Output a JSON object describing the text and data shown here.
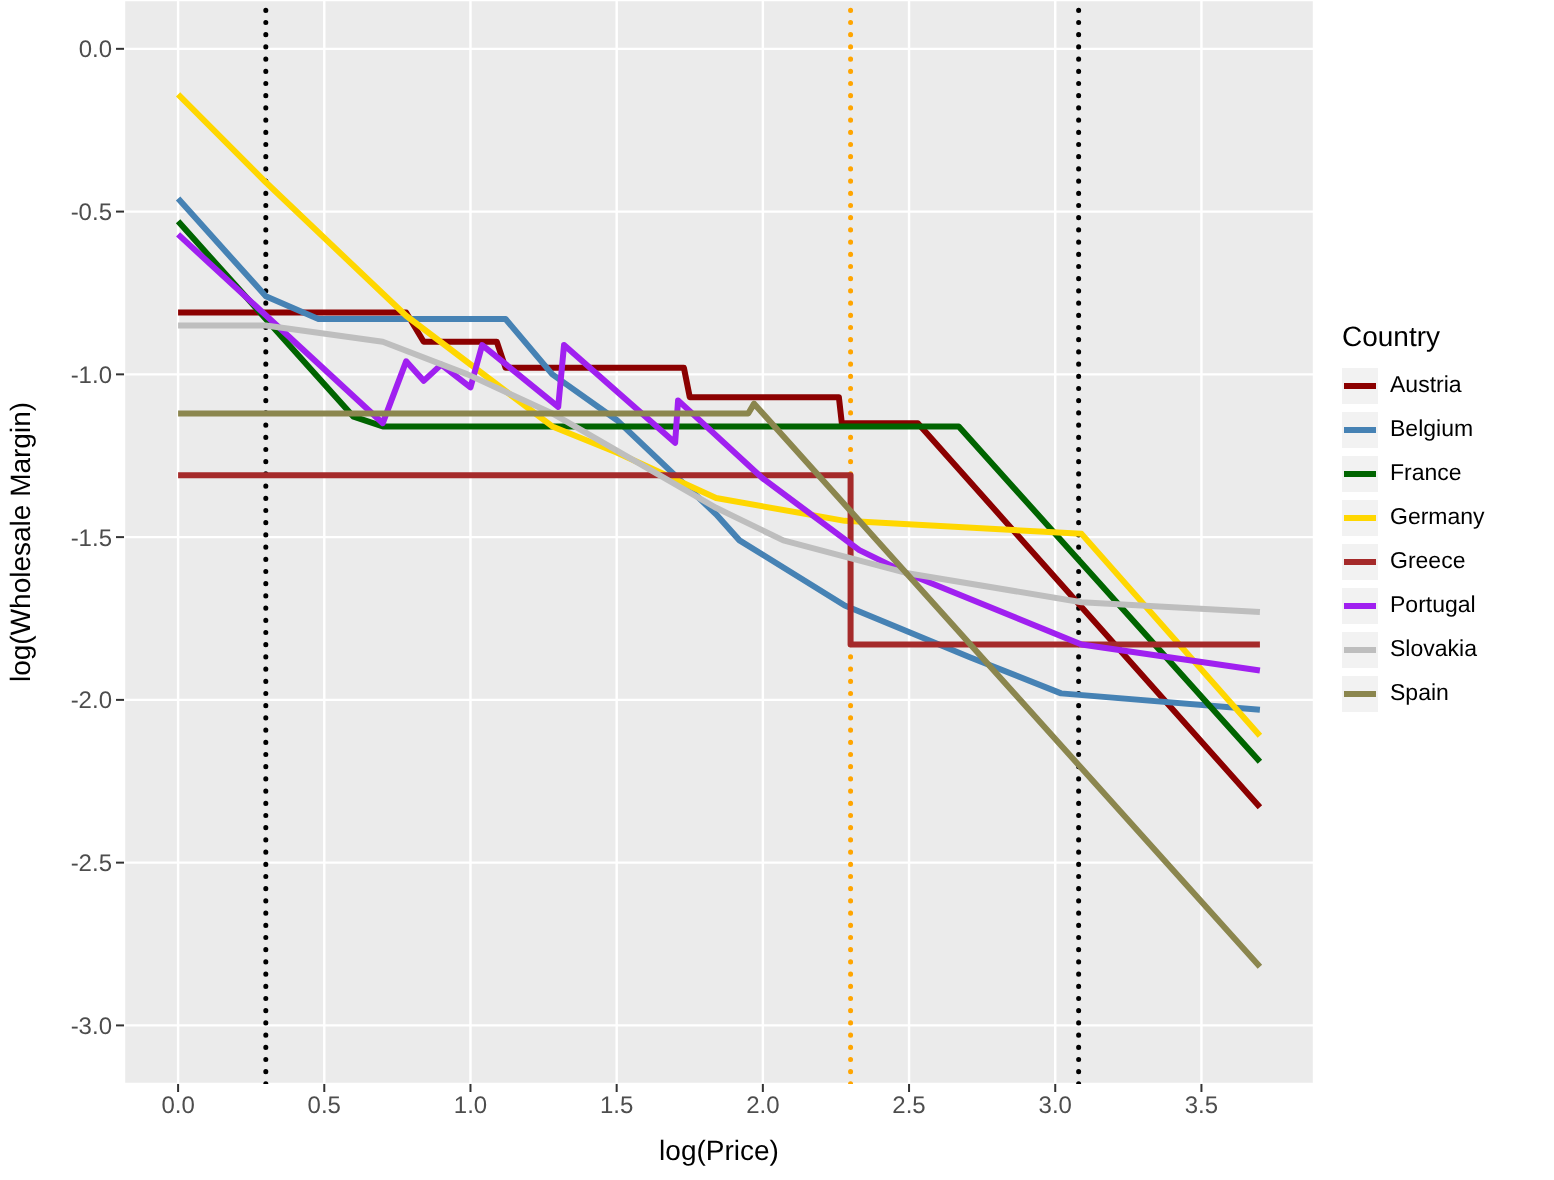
{
  "chart_data": {
    "type": "line",
    "xlabel": "log(Price)",
    "ylabel": "log(Wholesale Margin)",
    "legend_title": "Country",
    "legend": "right",
    "grid": true,
    "marker": "none",
    "line_style": "solid",
    "xlim": [
      -0.185,
      3.885
    ],
    "ylim": [
      -3.18,
      0.15
    ],
    "xticks": [
      {
        "value": 0,
        "label": "0.0"
      },
      0.5,
      {
        "value": 1,
        "label": "1.0"
      },
      1.5,
      {
        "value": 2,
        "label": "2.0"
      },
      2.5,
      {
        "value": 3,
        "label": "3.0"
      },
      3.5
    ],
    "yticks": [
      {
        "value": 0,
        "label": "0.0"
      },
      -0.5,
      {
        "value": -1,
        "label": "-1.0"
      },
      -1.5,
      {
        "value": -2,
        "label": "-2.0"
      },
      -2.5,
      {
        "value": -3,
        "label": "-3.0"
      }
    ],
    "ref_lines": [
      {
        "axis": "x",
        "value": 0.3,
        "color": "#000000",
        "line_style": "dotted"
      },
      {
        "axis": "x",
        "value": 2.3,
        "color": "#ffa500",
        "line_style": "dotted"
      },
      {
        "axis": "x",
        "value": 3.08,
        "color": "#000000",
        "line_style": "dotted"
      }
    ],
    "series": [
      {
        "name": "Austria",
        "color": "#8b0000",
        "x": [
          0,
          0.78,
          0.84,
          1.09,
          1.12,
          1.73,
          1.75,
          2.26,
          2.27,
          2.53,
          3.7
        ],
        "values": [
          -0.81,
          -0.81,
          -0.9,
          -0.9,
          -0.98,
          -0.98,
          -1.07,
          -1.07,
          -1.15,
          -1.15,
          -2.33
        ]
      },
      {
        "name": "Belgium",
        "color": "#4682b4",
        "x": [
          0,
          0.3,
          0.48,
          1.12,
          1.28,
          1.5,
          1.84,
          1.92,
          2.28,
          2.71,
          3.02,
          3.7
        ],
        "values": [
          -0.46,
          -0.76,
          -0.83,
          -0.83,
          -1.0,
          -1.14,
          -1.43,
          -1.51,
          -1.71,
          -1.87,
          -1.98,
          -2.03
        ]
      },
      {
        "name": "France",
        "color": "#006400",
        "x": [
          0,
          0.29,
          0.6,
          0.7,
          2.67,
          3.7
        ],
        "values": [
          -0.53,
          -0.82,
          -1.13,
          -1.16,
          -1.16,
          -2.19
        ]
      },
      {
        "name": "Germany",
        "color": "#ffd700",
        "x": [
          0,
          0.3,
          0.78,
          1.28,
          1.5,
          1.84,
          2.28,
          3.09,
          3.7
        ],
        "values": [
          -0.14,
          -0.41,
          -0.82,
          -1.16,
          -1.24,
          -1.38,
          -1.45,
          -1.49,
          -2.11
        ]
      },
      {
        "name": "Greece",
        "color": "#a52a2a",
        "x": [
          0,
          2.3,
          2.3,
          3.7
        ],
        "values": [
          -1.31,
          -1.31,
          -1.83,
          -1.83
        ]
      },
      {
        "name": "Portugal",
        "color": "#a020f0",
        "x": [
          0,
          0.7,
          0.78,
          0.84,
          0.9,
          1.0,
          1.04,
          1.3,
          1.32,
          1.7,
          1.71,
          2.0,
          2.33,
          2.49,
          3.09,
          3.7
        ],
        "values": [
          -0.57,
          -1.15,
          -0.96,
          -1.02,
          -0.97,
          -1.04,
          -0.91,
          -1.1,
          -0.91,
          -1.21,
          -1.08,
          -1.32,
          -1.54,
          -1.61,
          -1.83,
          -1.91
        ]
      },
      {
        "name": "Slovakia",
        "color": "#bebebe",
        "x": [
          0,
          0.3,
          0.7,
          0.99,
          1.28,
          1.84,
          2.07,
          2.49,
          3.09,
          3.7
        ],
        "values": [
          -0.85,
          -0.85,
          -0.9,
          -1.0,
          -1.12,
          -1.41,
          -1.51,
          -1.61,
          -1.7,
          -1.73
        ]
      },
      {
        "name": "Spain",
        "color": "#8b864e",
        "x": [
          0,
          1.95,
          1.97,
          3.7
        ],
        "values": [
          -1.12,
          -1.12,
          -1.09,
          -2.82
        ]
      }
    ]
  }
}
